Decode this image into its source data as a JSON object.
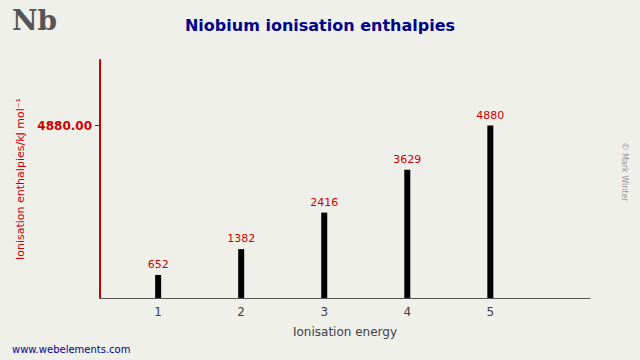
{
  "chart_data": {
    "type": "bar",
    "title": "Niobium ionisation enthalpies",
    "xlabel": "Ionisation energy",
    "ylabel": "Ionisation enthalpies/kJ mol⁻¹",
    "x": [
      1,
      2,
      3,
      4,
      5
    ],
    "values": [
      652,
      1382,
      2416,
      3629,
      4880
    ],
    "color": "#000000",
    "xlim": [
      0.3,
      6.2
    ],
    "xticks": [
      1,
      2,
      3,
      4,
      5
    ],
    "ylim": [
      0,
      6734.4
    ],
    "yticks": [
      {
        "value": 4880,
        "label": "4880.00"
      }
    ],
    "data_labels": true,
    "grid": false,
    "annotations": [
      "Nb",
      "www.webelements.com",
      "© Mark Winter"
    ]
  }
}
